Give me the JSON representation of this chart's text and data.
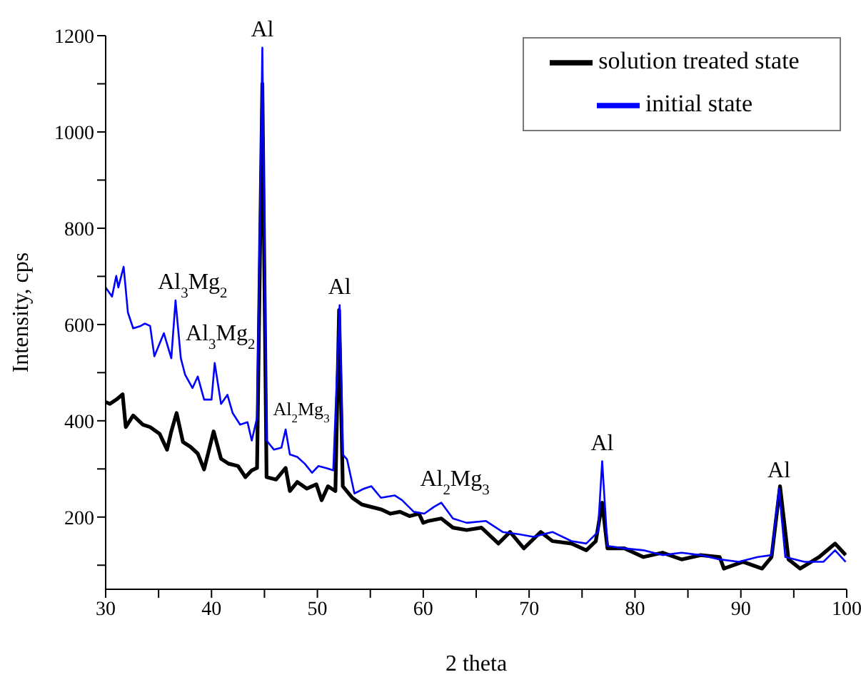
{
  "chart_data": {
    "type": "line",
    "xlabel": "2 theta",
    "ylabel": "Intensity, cps",
    "xlim": [
      30,
      100
    ],
    "xticks": [
      30,
      {
        "value": 35,
        "label": null
      },
      40,
      {
        "value": 45,
        "label": null
      },
      50,
      {
        "value": 55,
        "label": null
      },
      60,
      {
        "value": 65,
        "label": null
      },
      70,
      {
        "value": 75,
        "label": null
      },
      80,
      {
        "value": 85,
        "label": null
      },
      90,
      {
        "value": 95,
        "label": null
      },
      100
    ],
    "ylim": [
      50,
      1200
    ],
    "yticks": [
      {
        "value": 100,
        "label": null
      },
      200,
      {
        "value": 300,
        "label": null
      },
      400,
      {
        "value": 500,
        "label": null
      },
      600,
      {
        "value": 700,
        "label": null
      },
      800,
      {
        "value": 900,
        "label": null
      },
      1000,
      {
        "value": 1100,
        "label": null
      },
      1200
    ],
    "grid": false,
    "legend": "top right",
    "marker": "none",
    "line_style": "solid",
    "series": [
      {
        "name": "solution treated state",
        "color": "#000000",
        "x": [
          30,
          30.4,
          31,
          31.6,
          31.9,
          32.6,
          33.5,
          34.2,
          35.1,
          35.8,
          36.2,
          36.7,
          37.3,
          38,
          38.7,
          39.3,
          40.2,
          40.9,
          41.6,
          42.5,
          43.2,
          43.8,
          44.3,
          44.8,
          45.2,
          46.1,
          47,
          47.4,
          48.1,
          49,
          49.9,
          50.4,
          51,
          51.7,
          52.05,
          52.4,
          53.3,
          54.2,
          55.1,
          56,
          56.9,
          57.8,
          58.7,
          59.6,
          60,
          60.5,
          61.7,
          62.8,
          64.1,
          65.5,
          67.1,
          68.2,
          69.5,
          71.1,
          72.2,
          74,
          75.4,
          76.3,
          76.9,
          77.4,
          79,
          80.8,
          82.6,
          84.4,
          86.2,
          88,
          88.4,
          90.2,
          92,
          92.9,
          93.7,
          94.5,
          95.6,
          97.4,
          98.9,
          99.9
        ],
        "values": [
          439,
          435,
          444,
          455,
          387,
          411,
          392,
          387,
          373,
          340,
          378,
          416,
          356,
          346,
          332,
          299,
          378,
          321,
          311,
          306,
          283,
          297,
          302,
          1100,
          283,
          278,
          302,
          254,
          273,
          259,
          268,
          235,
          264,
          254,
          630,
          264,
          240,
          226,
          221,
          216,
          207,
          211,
          202,
          207,
          188,
          192,
          197,
          178,
          173,
          178,
          145,
          169,
          135,
          169,
          150,
          145,
          131,
          150,
          230,
          135,
          135,
          117,
          126,
          112,
          121,
          117,
          93,
          107,
          93,
          117,
          264,
          112,
          93,
          117,
          145,
          121
        ]
      },
      {
        "name": "initial state",
        "color": "#0000ff",
        "x": [
          30,
          30.6,
          31,
          31.2,
          31.7,
          32.1,
          32.6,
          33.3,
          33.7,
          34.2,
          34.6,
          35.5,
          36.2,
          36.6,
          37.1,
          37.5,
          38.2,
          38.7,
          39.3,
          40,
          40.3,
          40.9,
          41.5,
          42,
          42.7,
          43.4,
          43.8,
          44.3,
          44.8,
          45.2,
          45.9,
          46.6,
          47,
          47.4,
          48.1,
          48.8,
          49.5,
          50.1,
          50.8,
          51.5,
          52.1,
          52.4,
          52.8,
          53.5,
          54.4,
          55.1,
          56,
          57.3,
          58,
          59.1,
          60.1,
          61,
          61.7,
          62.8,
          64.1,
          65.9,
          67.5,
          69.1,
          70.4,
          72.2,
          74,
          75.4,
          76.5,
          76.9,
          77.4,
          79,
          80.8,
          82.6,
          84.4,
          86.2,
          88,
          89.8,
          91.6,
          92.9,
          93.6,
          94.2,
          96,
          97.8,
          98.9,
          99.9
        ],
        "values": [
          677,
          658,
          701,
          677,
          720,
          625,
          592,
          597,
          602,
          597,
          534,
          582,
          530,
          650,
          530,
          496,
          468,
          492,
          444,
          444,
          520,
          435,
          454,
          416,
          392,
          397,
          359,
          406,
          1175,
          359,
          340,
          344,
          382,
          330,
          325,
          311,
          292,
          306,
          302,
          297,
          640,
          330,
          320,
          249,
          259,
          264,
          240,
          245,
          235,
          211,
          207,
          221,
          230,
          197,
          188,
          192,
          169,
          164,
          159,
          169,
          150,
          145,
          169,
          316,
          140,
          135,
          131,
          121,
          126,
          121,
          112,
          107,
          117,
          121,
          259,
          117,
          107,
          107,
          131,
          107
        ]
      }
    ],
    "annotations": [
      {
        "text": "Al",
        "x": 44.8,
        "y": 1175
      },
      {
        "text": "Al",
        "x": 52.1,
        "y": 640
      },
      {
        "text": "Al",
        "x": 76.9,
        "y": 316
      },
      {
        "text": "Al",
        "x": 93.6,
        "y": 259
      },
      {
        "text": "Al$_{3}$Mg$_{2}$",
        "x": 36.6,
        "y": 650
      },
      {
        "text": "Al$_{3}$Mg$_{2}$",
        "x": 40.3,
        "y": 520
      },
      {
        "text": "Al$_{2}$Mg$_{3}$",
        "x": 47,
        "y": 382
      },
      {
        "text": "Al$_{2}$Mg$_{3}$",
        "x": 61.5,
        "y": 230
      }
    ]
  }
}
